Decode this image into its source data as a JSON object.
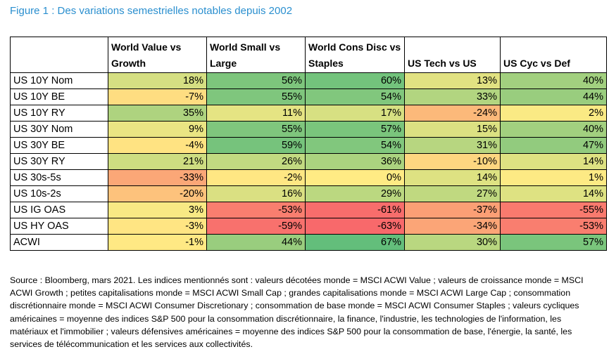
{
  "figure": {
    "title": "Figure 1 : Des variations semestrielles notables depuis 2002"
  },
  "table": {
    "columns": [
      "World Value vs Growth",
      "World Small vs Large",
      "World Cons Disc vs Staples",
      "US Tech vs US",
      "US Cyc vs Def"
    ],
    "rows": [
      {
        "label": "US 10Y Nom",
        "values": [
          18,
          56,
          60,
          13,
          40
        ]
      },
      {
        "label": "US 10Y BE",
        "values": [
          -7,
          55,
          54,
          33,
          44
        ]
      },
      {
        "label": "US 10Y RY",
        "values": [
          35,
          11,
          17,
          -24,
          2
        ]
      },
      {
        "label": "US 30Y Nom",
        "values": [
          9,
          55,
          57,
          15,
          40
        ]
      },
      {
        "label": "US 30Y BE",
        "values": [
          -4,
          59,
          54,
          31,
          47
        ]
      },
      {
        "label": "US 30Y RY",
        "values": [
          21,
          26,
          36,
          -10,
          14
        ]
      },
      {
        "label": "US 30s-5s",
        "values": [
          -33,
          -2,
          0,
          14,
          1
        ]
      },
      {
        "label": "US 10s-2s",
        "values": [
          -20,
          16,
          29,
          27,
          14
        ]
      },
      {
        "label": "US IG OAS",
        "values": [
          3,
          -53,
          -61,
          -37,
          -55
        ]
      },
      {
        "label": "US HY OAS",
        "values": [
          -3,
          -59,
          -63,
          -34,
          -53
        ]
      },
      {
        "label": "ACWI",
        "values": [
          -1,
          44,
          67,
          30,
          57
        ]
      }
    ],
    "unit": "%",
    "colors": {
      "low": "#f8696b",
      "mid": "#ffeb84",
      "high": "#63be7b"
    }
  },
  "source_note": "Source : Bloomberg, mars 2021. Les indices mentionnés sont : valeurs décotées monde = MSCI ACWI Value ; valeurs de croissance monde = MSCI ACWI Growth ; petites capitalisations monde = MSCI ACWI Small Cap ; grandes capitalisations monde = MSCI ACWI Large Cap ; consommation discrétionnaire monde = MSCI ACWI Consumer Discretionary ; consommation de base monde = MSCI ACWI Consumer Staples ; valeurs cycliques américaines = moyenne des indices S&P 500 pour la consommation discrétionnaire, la finance, l'industrie, les technologies de l'information, les matériaux et l'immobilier ; valeurs défensives américaines = moyenne des indices S&P 500 pour la consommation de base, l'énergie, la santé, les services de télécommunication et les services aux collectivités."
}
